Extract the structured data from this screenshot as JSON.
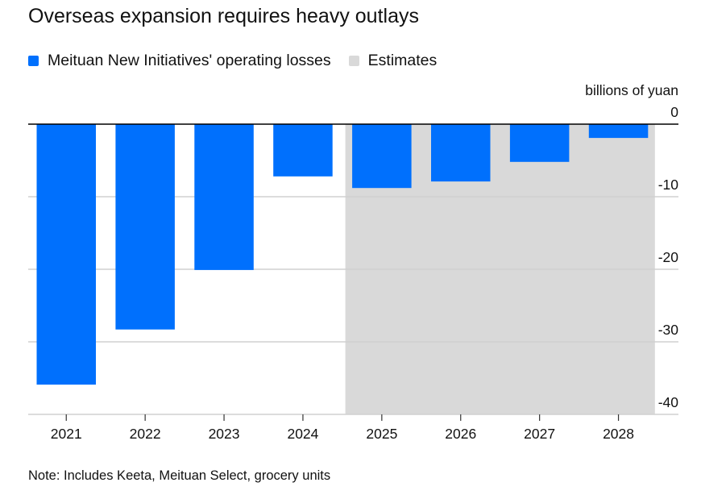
{
  "chart_data": {
    "type": "bar",
    "title": "Overseas expansion requires heavy outlays",
    "legend": [
      {
        "label": "Meituan New Initiatives' operating losses",
        "color": "#0070fd"
      },
      {
        "label": "Estimates",
        "color": "#d9d9d9"
      }
    ],
    "legend_position": "top-left",
    "categories": [
      "2021",
      "2022",
      "2023",
      "2024",
      "2025",
      "2026",
      "2027",
      "2028"
    ],
    "series": [
      {
        "name": "Meituan New Initiatives' operating losses",
        "values": [
          -35.9,
          -28.3,
          -20.1,
          -7.2,
          -8.8,
          -7.9,
          -5.2,
          -1.9
        ]
      }
    ],
    "estimate_range": [
      "2025",
      "2028"
    ],
    "ylabel": "billions of yuan",
    "ylim": [
      -40,
      0
    ],
    "yticks": [
      0,
      -10,
      -20,
      -30,
      -40
    ],
    "ytick_labels": [
      "0",
      "-10",
      "-20",
      "-30",
      "-40"
    ],
    "y_axis_side": "right",
    "grid": true,
    "note": "Note: Includes Keeta, Meituan Select, grocery units"
  },
  "colors": {
    "bar": "#0070fd",
    "estimate_shade": "#d9d9d9",
    "grid": "#d0d0d0",
    "zero_line": "#000000"
  }
}
